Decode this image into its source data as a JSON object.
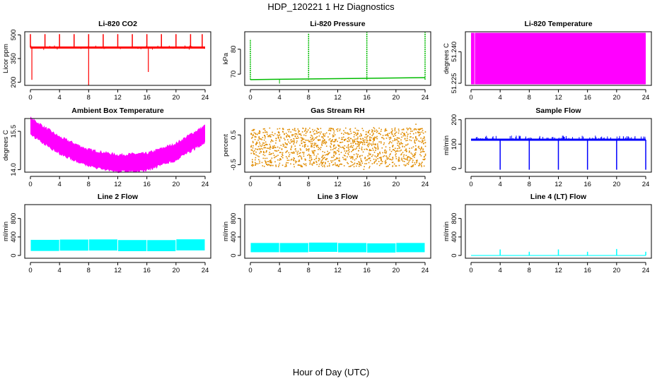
{
  "figure": {
    "title": "HDP_120221  1 Hz Diagnostics",
    "xlabel": "Hour of Day (UTC)"
  },
  "chart_data": [
    {
      "id": "co2",
      "type": "line",
      "title": "Li-820 CO2",
      "ylabel": "Licor ppm",
      "color": "#ff0000",
      "style": "line",
      "x": [
        0,
        24
      ],
      "xticks": [
        0,
        4,
        8,
        12,
        16,
        20,
        24
      ],
      "ylim": [
        180,
        520
      ],
      "yticks": [
        200,
        350,
        500
      ],
      "ytick_labels": [
        "200",
        "350",
        "500"
      ],
      "baseline": 420,
      "spikes_up": [
        0,
        2,
        4,
        6,
        8,
        10,
        12,
        14,
        16,
        18,
        20,
        22,
        23.6
      ],
      "spikes_down": [
        {
          "x": 0.2,
          "y": 215
        },
        {
          "x": 8,
          "y": 180
        },
        {
          "x": 16.2,
          "y": 265
        }
      ],
      "spike_peak": 505
    },
    {
      "id": "pressure",
      "type": "line",
      "title": "Li-820 Pressure",
      "ylabel": "kPa",
      "color": "#00bb00",
      "style": "line",
      "x": [
        0,
        24
      ],
      "xticks": [
        0,
        4,
        8,
        12,
        16,
        20,
        24
      ],
      "ylim": [
        65.5,
        87
      ],
      "yticks": [
        70,
        80
      ],
      "ytick_labels": [
        "70",
        "80"
      ],
      "baseline_start": 67.8,
      "baseline_end": 68.6,
      "spikes": [
        {
          "x": 0,
          "y": 84
        },
        {
          "x": 8,
          "y": 86.5
        },
        {
          "x": 16,
          "y": 86.8
        },
        {
          "x": 24,
          "y": 86.8
        }
      ]
    },
    {
      "id": "temperature",
      "type": "area",
      "title": "Li-820 Temperature",
      "ylabel": "degrees C",
      "color": "#ff00ff",
      "style": "band",
      "x": [
        0,
        24
      ],
      "xticks": [
        0,
        4,
        8,
        12,
        16,
        20,
        24
      ],
      "ylim": [
        51.224,
        51.2495
      ],
      "yticks": [
        51.225,
        51.24
      ],
      "ytick_labels": [
        "51.225",
        "51.240"
      ],
      "band_low": 51.2245,
      "band_high": 51.249,
      "gap_at": 0.5
    },
    {
      "id": "ambient",
      "type": "area",
      "title": "Ambient Box Temperature",
      "ylabel": "degrees C",
      "color": "#ff00ff",
      "style": "band",
      "x": [
        0,
        24
      ],
      "xticks": [
        0,
        4,
        8,
        12,
        16,
        20,
        24
      ],
      "ylim": [
        13.9,
        16.0
      ],
      "yticks": [
        14.0,
        15.5
      ],
      "ytick_labels": [
        "14.0",
        "15.5"
      ],
      "center": [
        [
          0,
          15.7
        ],
        [
          4,
          14.95
        ],
        [
          8,
          14.45
        ],
        [
          12,
          14.25
        ],
        [
          16,
          14.3
        ],
        [
          20,
          14.7
        ],
        [
          24,
          15.4
        ]
      ],
      "half_width": 0.4
    },
    {
      "id": "rh",
      "type": "scatter",
      "title": "Gas Stream RH",
      "ylabel": "percent",
      "color": "#e08c00",
      "style": "noise",
      "x": [
        0,
        24
      ],
      "xticks": [
        0,
        4,
        8,
        12,
        16,
        20,
        24
      ],
      "ylim": [
        -0.75,
        1.05
      ],
      "yticks": [
        -0.5,
        0.5
      ],
      "ytick_labels": [
        "-0.5",
        "0.5"
      ],
      "low": -0.55,
      "high": 0.75
    },
    {
      "id": "sample_flow",
      "type": "line",
      "title": "Sample Flow",
      "ylabel": "ml/min",
      "color": "#0000ff",
      "style": "line",
      "x": [
        0,
        24
      ],
      "xticks": [
        0,
        4,
        8,
        12,
        16,
        20,
        24
      ],
      "ylim": [
        -15,
        205
      ],
      "yticks": [
        0,
        100,
        200
      ],
      "ytick_labels": [
        "0",
        "100",
        "200"
      ],
      "baseline": 118,
      "ripple_high": 135,
      "drops": [
        4,
        8,
        12,
        16,
        20,
        24
      ],
      "drop_to": -5
    },
    {
      "id": "line2",
      "type": "area",
      "title": "Line 2 Flow",
      "ylabel": "ml/min",
      "color": "#00ffff",
      "style": "band",
      "x": [
        0,
        24
      ],
      "xticks": [
        0,
        4,
        8,
        12,
        16,
        20,
        24
      ],
      "ylim": [
        -60,
        1100
      ],
      "yticks": [
        0,
        400,
        800
      ],
      "ytick_labels": [
        "0",
        "400",
        "800"
      ],
      "band_low": 100,
      "band_high": 340,
      "gaps": [
        4,
        8,
        12,
        16,
        20
      ]
    },
    {
      "id": "line3",
      "type": "area",
      "title": "Line 3 Flow",
      "ylabel": "ml/min",
      "color": "#00ffff",
      "style": "band",
      "x": [
        0,
        24
      ],
      "xticks": [
        0,
        4,
        8,
        12,
        16,
        20,
        24
      ],
      "ylim": [
        -60,
        1100
      ],
      "yticks": [
        0,
        400,
        800
      ],
      "ytick_labels": [
        "0",
        "400",
        "800"
      ],
      "band_low": 70,
      "band_high": 270,
      "gaps": [
        4,
        8,
        12,
        16,
        20
      ]
    },
    {
      "id": "line4",
      "type": "line",
      "title": "Line 4 (LT) Flow",
      "ylabel": "ml/min",
      "color": "#00ffff",
      "style": "line",
      "x": [
        0,
        24
      ],
      "xticks": [
        0,
        4,
        8,
        12,
        16,
        20,
        24
      ],
      "ylim": [
        -60,
        1100
      ],
      "yticks": [
        0,
        400,
        800
      ],
      "ytick_labels": [
        "0",
        "400",
        "800"
      ],
      "baseline": 0,
      "spikes": [
        {
          "x": 4,
          "y": 130
        },
        {
          "x": 8,
          "y": 80
        },
        {
          "x": 12,
          "y": 130
        },
        {
          "x": 16,
          "y": 80
        },
        {
          "x": 20,
          "y": 140
        },
        {
          "x": 24,
          "y": 80
        }
      ]
    }
  ]
}
